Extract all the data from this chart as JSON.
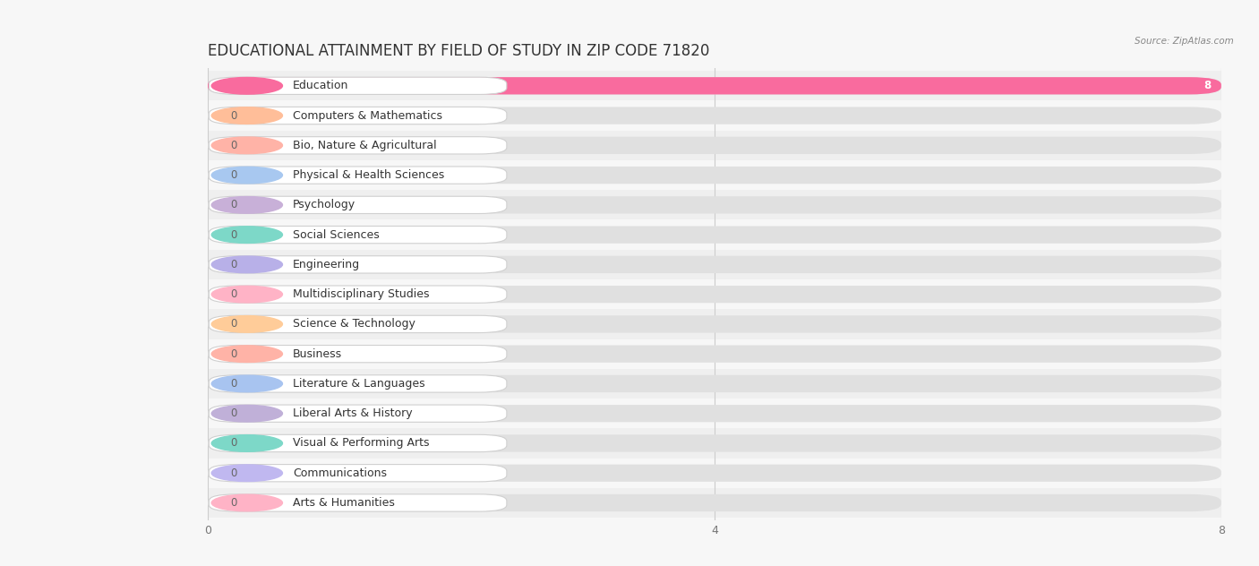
{
  "title": "EDUCATIONAL ATTAINMENT BY FIELD OF STUDY IN ZIP CODE 71820",
  "source": "Source: ZipAtlas.com",
  "categories": [
    "Education",
    "Computers & Mathematics",
    "Bio, Nature & Agricultural",
    "Physical & Health Sciences",
    "Psychology",
    "Social Sciences",
    "Engineering",
    "Multidisciplinary Studies",
    "Science & Technology",
    "Business",
    "Literature & Languages",
    "Liberal Arts & History",
    "Visual & Performing Arts",
    "Communications",
    "Arts & Humanities"
  ],
  "values": [
    8,
    0,
    0,
    0,
    0,
    0,
    0,
    0,
    0,
    0,
    0,
    0,
    0,
    0,
    0
  ],
  "bar_colors": [
    "#F96B9E",
    "#FFBE99",
    "#FFB3A7",
    "#A8C8F0",
    "#C8B0D8",
    "#7DD8C8",
    "#B8B0E8",
    "#FFB3C6",
    "#FFCC99",
    "#FFB3A7",
    "#A8C4F0",
    "#C0B0D8",
    "#7DD8C8",
    "#C0B8F0",
    "#FFB3C6"
  ],
  "xlim_max": 8,
  "xticks": [
    0,
    4,
    8
  ],
  "background_color": "#f7f7f7",
  "row_color_even": "#efefef",
  "row_color_odd": "#f7f7f7",
  "bar_bg_color": "#e0e0e0",
  "title_fontsize": 12,
  "label_fontsize": 9,
  "value_fontsize": 8.5
}
